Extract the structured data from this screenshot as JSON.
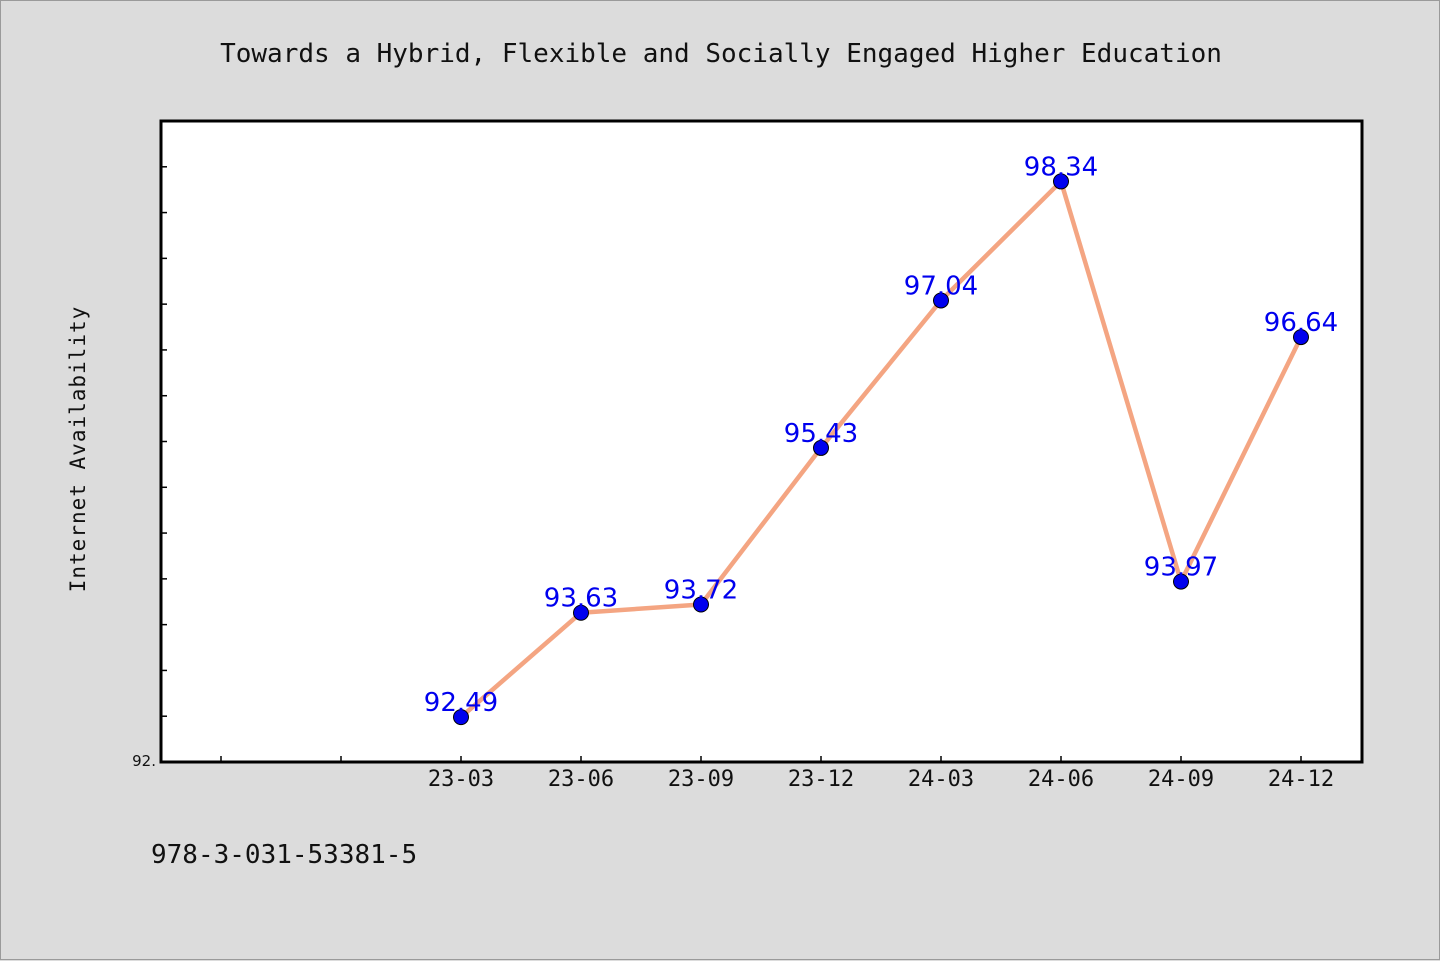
{
  "chart_data": {
    "type": "line",
    "title": "Towards a Hybrid, Flexible and Socially Engaged Higher Education",
    "xlabel": "",
    "ylabel": "Internet Availability",
    "categories": [
      "23-03",
      "23-06",
      "23-09",
      "23-12",
      "24-03",
      "24-06",
      "24-09",
      "24-12"
    ],
    "values": [
      92.49,
      93.63,
      93.72,
      95.43,
      97.04,
      98.34,
      93.97,
      96.64
    ],
    "value_labels": [
      "92.49",
      "93.63",
      "93.72",
      "95.43",
      "97.04",
      "98.34",
      "93.97",
      "96.64"
    ],
    "ylim": [
      92.0,
      99.0
    ],
    "y_tick_label": "92.",
    "line_color": "#f4a582",
    "marker_color": "#0000ee",
    "label_color": "#0000ee",
    "grid": false
  },
  "footer_text": "978-3-031-53381-5"
}
